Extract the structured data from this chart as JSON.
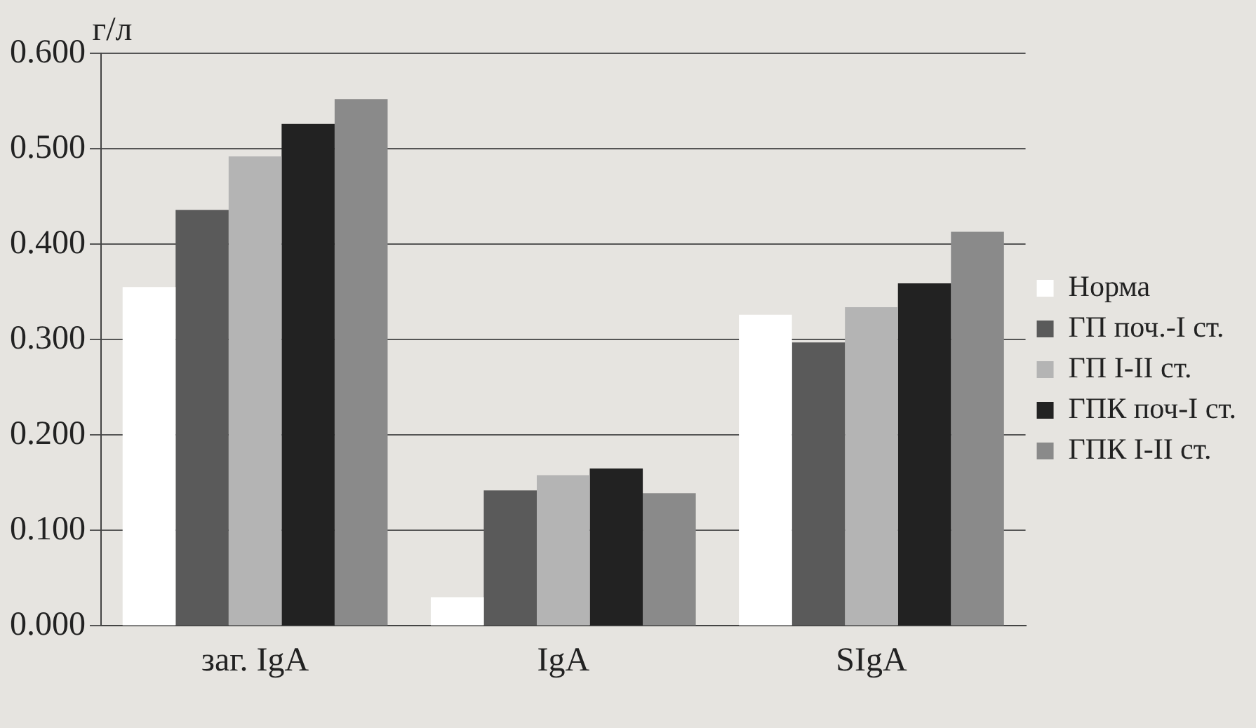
{
  "chart_data": {
    "type": "bar",
    "ylabel": "г/л",
    "categories": [
      "заг. IgA",
      "IgA",
      "SIgA"
    ],
    "series": [
      {
        "name": "Норма",
        "color": "#ffffff",
        "values": [
          0.355,
          0.03,
          0.326
        ]
      },
      {
        "name": "ГП поч.-I ст.",
        "color": "#5a5a5a",
        "values": [
          0.436,
          0.142,
          0.297
        ]
      },
      {
        "name": "ГП I-II ст.",
        "color": "#b4b4b4",
        "values": [
          0.492,
          0.158,
          0.334
        ]
      },
      {
        "name": "ГПК поч-I ст.",
        "color": "#222222",
        "values": [
          0.526,
          0.165,
          0.359
        ]
      },
      {
        "name": "ГПК I-II ст.",
        "color": "#8a8a8a",
        "values": [
          0.552,
          0.139,
          0.413
        ]
      }
    ],
    "ylim": [
      0,
      0.6
    ],
    "yticks": [
      {
        "value": 0,
        "label": "0.000"
      },
      {
        "value": 0.1,
        "label": "0.100"
      },
      {
        "value": 0.2,
        "label": "0.200"
      },
      {
        "value": 0.3,
        "label": "0.300"
      },
      {
        "value": 0.4,
        "label": "0.400"
      },
      {
        "value": 0.5,
        "label": "0.500"
      },
      {
        "value": 0.6,
        "label": "0.600"
      }
    ],
    "grid": "y",
    "legend": "right"
  }
}
